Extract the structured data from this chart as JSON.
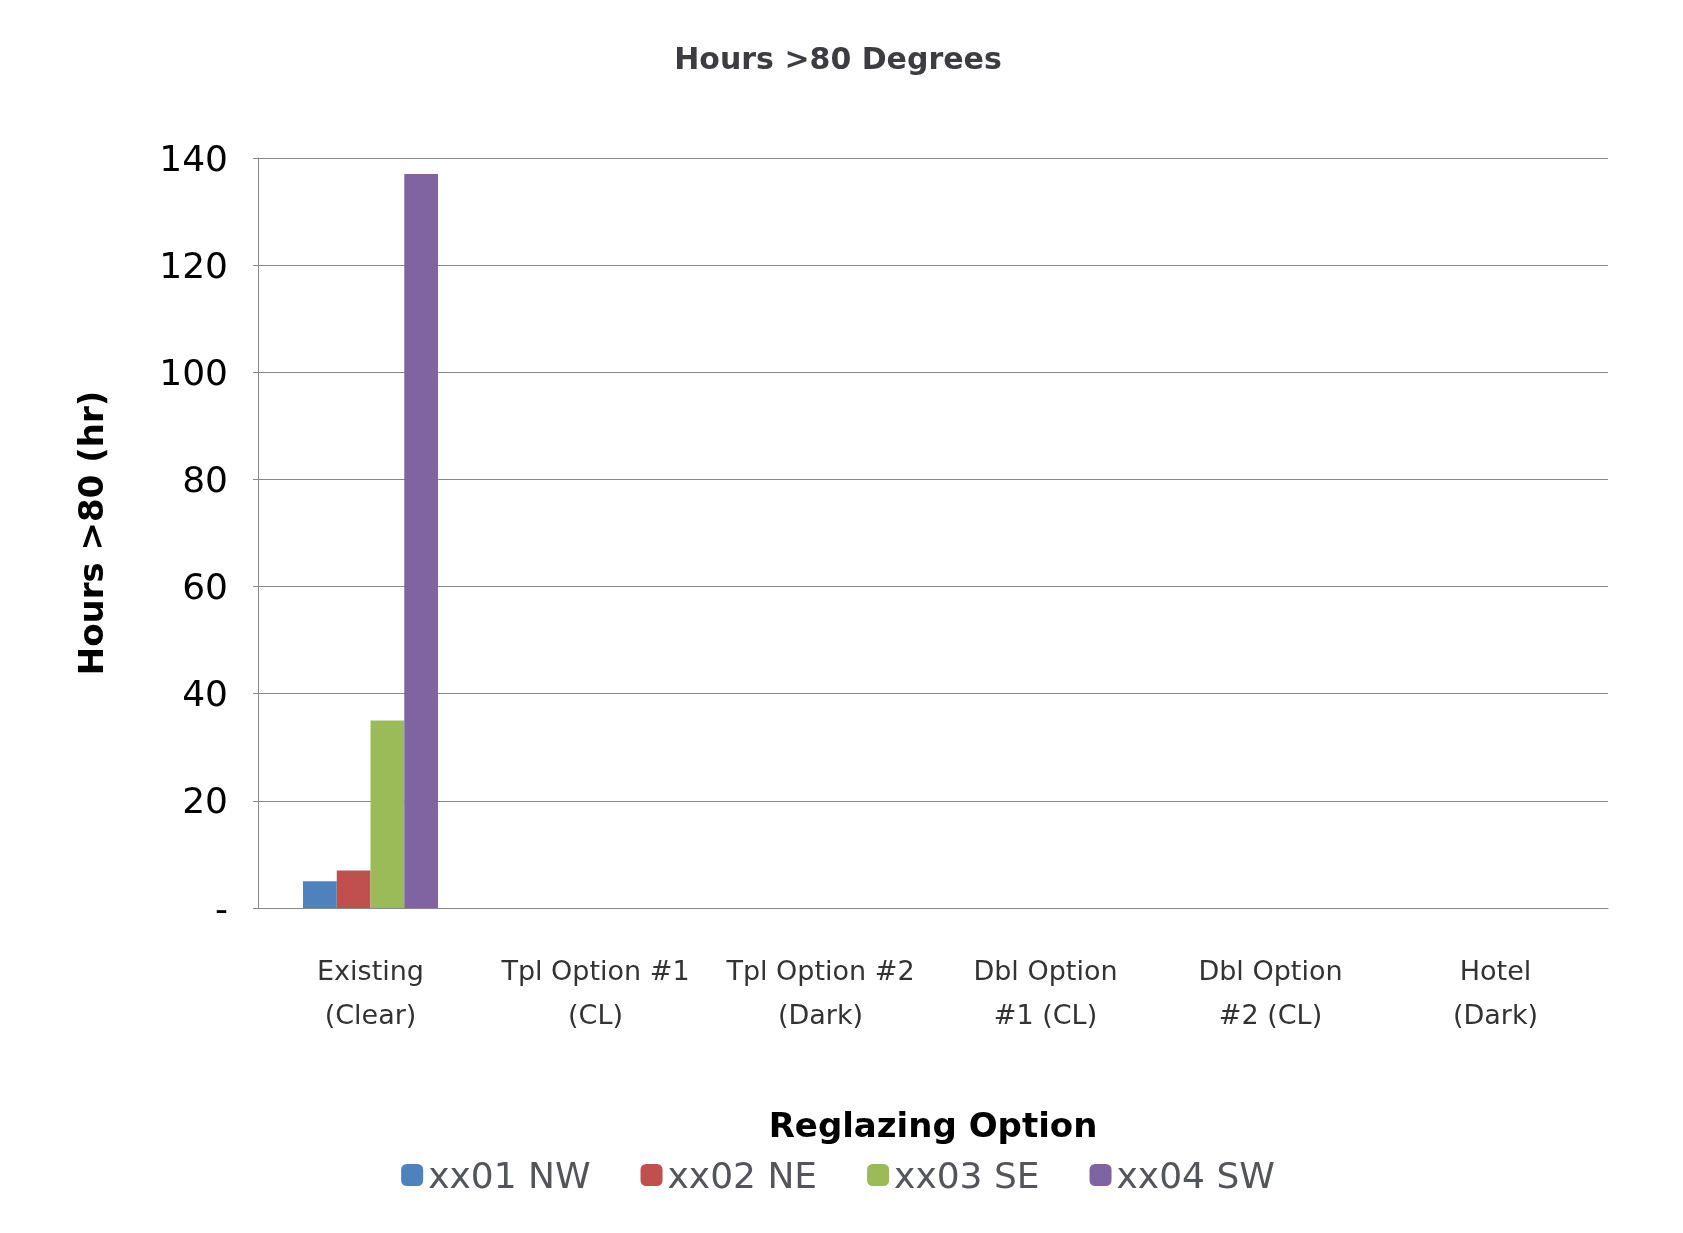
{
  "chart_data": {
    "type": "bar",
    "title": "Hours >80 Degrees",
    "xlabel": "Reglazing Option",
    "ylabel": "Hours >80 (hr)",
    "categories": [
      "Existing\n(Clear)",
      "Tpl Option #1\n(CL)",
      "Tpl Option #2\n(Dark)",
      "Dbl Option\n#1 (CL)",
      "Dbl Option\n#2 (CL)",
      "Hotel\n(Dark)"
    ],
    "series": [
      {
        "name": "xx01 NW",
        "color": "#4f81bd",
        "values": [
          5,
          0,
          0,
          0,
          0,
          0
        ]
      },
      {
        "name": "xx02 NE",
        "color": "#c0504d",
        "values": [
          7,
          0,
          0,
          0,
          0,
          0
        ]
      },
      {
        "name": "xx03 SE",
        "color": "#9bbb59",
        "values": [
          35,
          0,
          0,
          0,
          0,
          0
        ]
      },
      {
        "name": "xx04 SW",
        "color": "#8064a2",
        "values": [
          137,
          0,
          0,
          0,
          0,
          0
        ]
      }
    ],
    "ylim": [
      0,
      140
    ],
    "yticks": [
      {
        "value": 0,
        "label": "-"
      },
      20,
      40,
      60,
      80,
      100,
      120,
      140
    ],
    "grid": "y",
    "legend": "bottom"
  }
}
